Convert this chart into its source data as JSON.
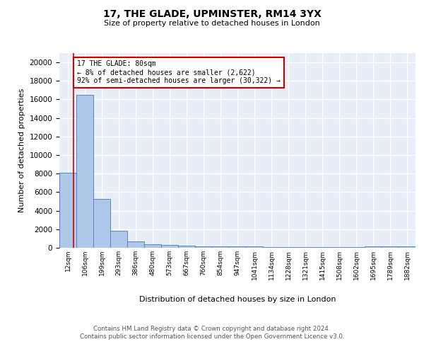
{
  "title": "17, THE GLADE, UPMINSTER, RM14 3YX",
  "subtitle": "Size of property relative to detached houses in London",
  "xlabel": "Distribution of detached houses by size in London",
  "ylabel": "Number of detached properties",
  "categories": [
    "12sqm",
    "106sqm",
    "199sqm",
    "293sqm",
    "386sqm",
    "480sqm",
    "573sqm",
    "667sqm",
    "760sqm",
    "854sqm",
    "947sqm",
    "1041sqm",
    "1134sqm",
    "1228sqm",
    "1321sqm",
    "1415sqm",
    "1508sqm",
    "1602sqm",
    "1695sqm",
    "1789sqm",
    "1882sqm"
  ],
  "values": [
    8100,
    16500,
    5300,
    1800,
    700,
    350,
    300,
    200,
    160,
    150,
    130,
    120,
    110,
    100,
    100,
    100,
    100,
    100,
    120,
    130,
    160
  ],
  "bar_color": "#aec6e8",
  "bar_edge_color": "#5585c5",
  "background_color": "#e8eef8",
  "grid_color": "#ffffff",
  "annotation_text": "17 THE GLADE: 80sqm\n← 8% of detached houses are smaller (2,622)\n92% of semi-detached houses are larger (30,322) →",
  "annotation_box_color": "#ffffff",
  "annotation_box_edge": "#cc0000",
  "red_line_x": 0.85,
  "footnote": "Contains HM Land Registry data © Crown copyright and database right 2024.\nContains public sector information licensed under the Open Government Licence v3.0.",
  "ylim": [
    0,
    21000
  ],
  "yticks": [
    0,
    2000,
    4000,
    6000,
    8000,
    10000,
    12000,
    14000,
    16000,
    18000,
    20000
  ]
}
